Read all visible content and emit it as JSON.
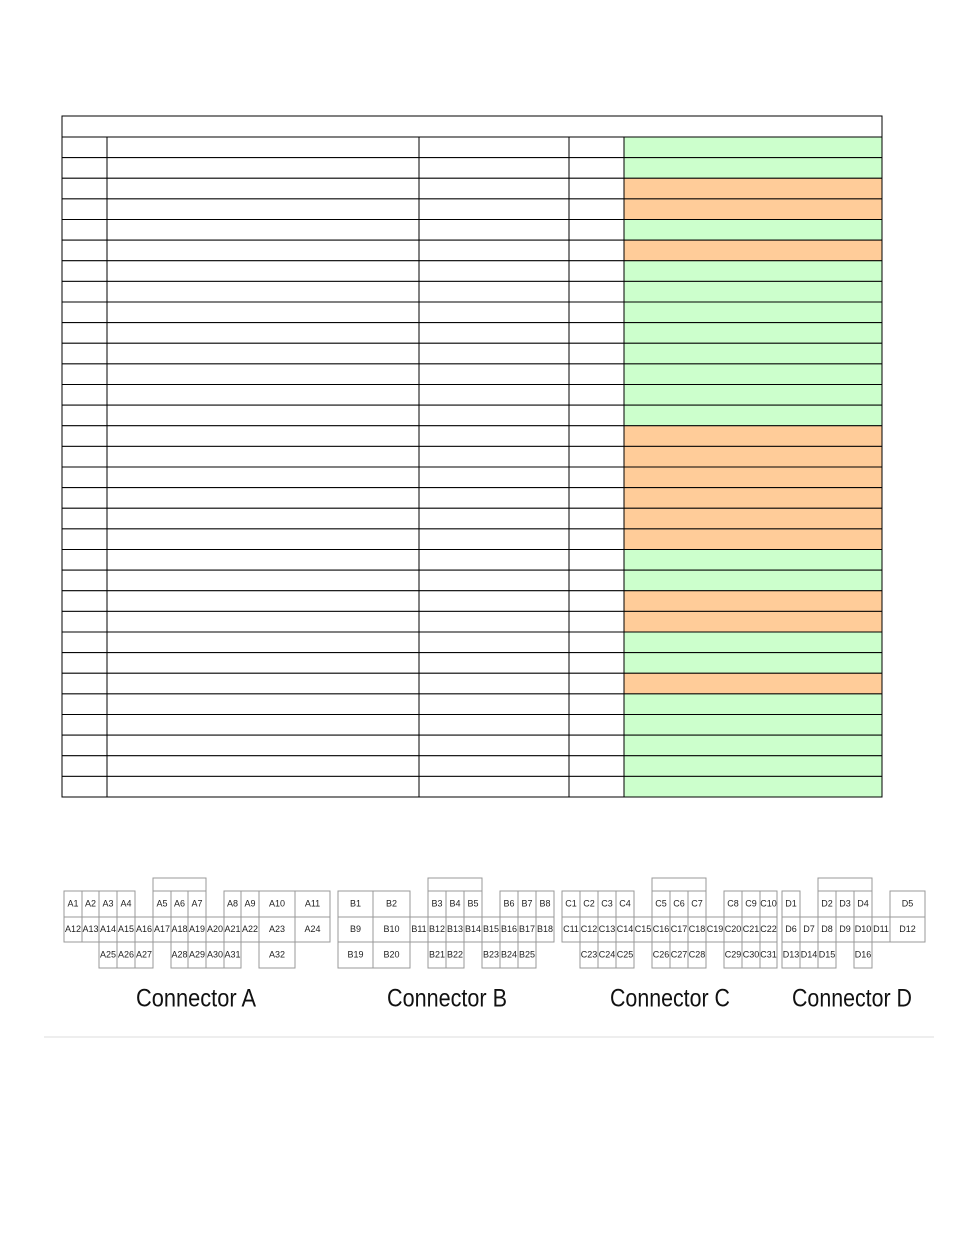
{
  "table": {
    "header_color": "#ffffff",
    "row_colors": [
      "#ccffcc",
      "#ccffcc",
      "#ffcc99",
      "#ffcc99",
      "#ccffcc",
      "#ffcc99",
      "#ccffcc",
      "#ccffcc",
      "#ccffcc",
      "#ccffcc",
      "#ccffcc",
      "#ccffcc",
      "#ccffcc",
      "#ccffcc",
      "#ffcc99",
      "#ffcc99",
      "#ffcc99",
      "#ffcc99",
      "#ffcc99",
      "#ffcc99",
      "#ccffcc",
      "#ccffcc",
      "#ffcc99",
      "#ffcc99",
      "#ccffcc",
      "#ccffcc",
      "#ffcc99",
      "#ccffcc",
      "#ccffcc",
      "#ccffcc",
      "#ccffcc",
      "#ccffcc"
    ]
  },
  "connectors": [
    {
      "name": "Connector A",
      "rows": [
        [
          "A1",
          "A2",
          "A3",
          "A4",
          null,
          "A5",
          "A6",
          "A7",
          null,
          "A8",
          "A9",
          "A10",
          "A11"
        ],
        [
          "A12",
          "A13",
          "A14",
          "A15",
          "A16",
          "A17",
          "A18",
          "A19",
          "A20",
          "A21",
          "A22",
          "A23",
          "A24"
        ],
        [
          null,
          null,
          "A25",
          "A26",
          "A27",
          null,
          "A28",
          "A29",
          "A30",
          "A31",
          null,
          "A32",
          null
        ]
      ]
    },
    {
      "name": "Connector B",
      "rows": [
        [
          "B1",
          "B2",
          null,
          "B3",
          "B4",
          "B5",
          null,
          "B6",
          "B7",
          "B8"
        ],
        [
          "B9",
          "B10",
          "B11",
          "B12",
          "B13",
          "B14",
          "B15",
          "B16",
          "B17",
          "B18"
        ],
        [
          "B19",
          "B20",
          null,
          "B21",
          "B22",
          null,
          "B23",
          "B24",
          "B25",
          null
        ]
      ]
    },
    {
      "name": "Connector C",
      "rows": [
        [
          "C1",
          "C2",
          "C3",
          "C4",
          null,
          "C5",
          "C6",
          "C7",
          null,
          "C8",
          "C9",
          "C10"
        ],
        [
          "C11",
          "C12",
          "C13",
          "C14",
          "C15",
          "C16",
          "C17",
          "C18",
          "C19",
          "C20",
          "C21",
          "C22"
        ],
        [
          null,
          "C23",
          "C24",
          "C25",
          null,
          "C26",
          "C27",
          "C28",
          null,
          "C29",
          "C30",
          "C31"
        ]
      ]
    },
    {
      "name": "Connector D",
      "rows": [
        [
          "D1",
          null,
          "D2",
          "D3",
          "D4",
          null,
          "D5"
        ],
        [
          "D6",
          "D7",
          "D8",
          "D9",
          "D10",
          "D11",
          "D12"
        ],
        [
          "D13",
          "D14",
          "D15",
          null,
          "D16",
          null,
          null
        ]
      ]
    }
  ]
}
